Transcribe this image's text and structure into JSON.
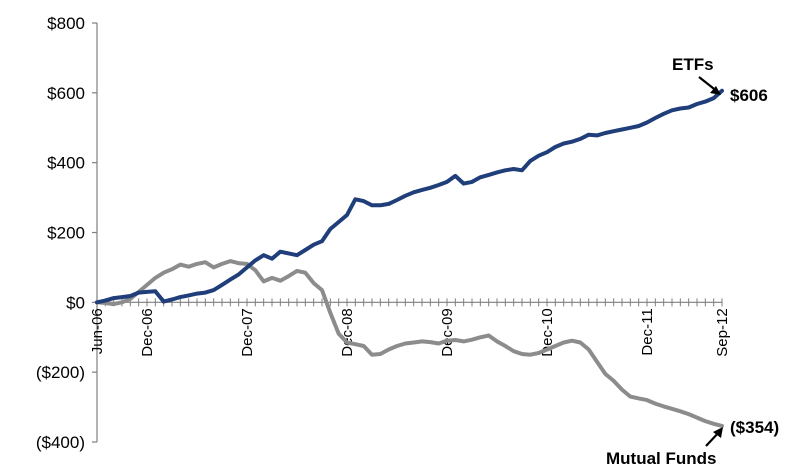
{
  "chart_data": {
    "type": "line",
    "title": "",
    "xlabel": "",
    "ylabel": "",
    "x_range": [
      "Jun-06",
      "Sep-12"
    ],
    "ylim": [
      -400,
      800
    ],
    "y_ticks": [
      800,
      600,
      400,
      200,
      0,
      -200,
      -400
    ],
    "y_tick_labels": [
      "$800",
      "$600",
      "$400",
      "$200",
      "$0",
      "($200)",
      "($400)"
    ],
    "x_tick_labels": [
      "Jun-06",
      "Dec-06",
      "Dec-07",
      "Dec-08",
      "Dec-09",
      "Dec-10",
      "Dec-11",
      "Sep-12"
    ],
    "x_tick_months": [
      0,
      6,
      18,
      30,
      42,
      54,
      66,
      75
    ],
    "grid": false,
    "colors": {
      "etfs": "#1f3e7a",
      "mutual_funds": "#8c8c8c",
      "axis": "#7f7f7f"
    },
    "series": [
      {
        "name": "ETFs",
        "values": [
          [
            0,
            0
          ],
          [
            1,
            5
          ],
          [
            2,
            12
          ],
          [
            3,
            15
          ],
          [
            4,
            18
          ],
          [
            5,
            28
          ],
          [
            6,
            30
          ],
          [
            7,
            32
          ],
          [
            8,
            2
          ],
          [
            9,
            8
          ],
          [
            10,
            15
          ],
          [
            11,
            20
          ],
          [
            12,
            25
          ],
          [
            13,
            28
          ],
          [
            14,
            35
          ],
          [
            15,
            50
          ],
          [
            16,
            65
          ],
          [
            17,
            80
          ],
          [
            18,
            100
          ],
          [
            19,
            120
          ],
          [
            20,
            135
          ],
          [
            21,
            125
          ],
          [
            22,
            145
          ],
          [
            23,
            140
          ],
          [
            24,
            135
          ],
          [
            25,
            150
          ],
          [
            26,
            165
          ],
          [
            27,
            175
          ],
          [
            28,
            210
          ],
          [
            29,
            230
          ],
          [
            30,
            250
          ],
          [
            31,
            295
          ],
          [
            32,
            290
          ],
          [
            33,
            278
          ],
          [
            34,
            278
          ],
          [
            35,
            282
          ],
          [
            36,
            293
          ],
          [
            37,
            305
          ],
          [
            38,
            315
          ],
          [
            39,
            322
          ],
          [
            40,
            328
          ],
          [
            41,
            336
          ],
          [
            42,
            345
          ],
          [
            43,
            362
          ],
          [
            44,
            340
          ],
          [
            45,
            345
          ],
          [
            46,
            358
          ],
          [
            47,
            365
          ],
          [
            48,
            372
          ],
          [
            49,
            378
          ],
          [
            50,
            382
          ],
          [
            51,
            378
          ],
          [
            52,
            405
          ],
          [
            53,
            420
          ],
          [
            54,
            430
          ],
          [
            55,
            445
          ],
          [
            56,
            455
          ],
          [
            57,
            460
          ],
          [
            58,
            468
          ],
          [
            59,
            480
          ],
          [
            60,
            478
          ],
          [
            61,
            485
          ],
          [
            62,
            490
          ],
          [
            63,
            495
          ],
          [
            64,
            500
          ],
          [
            65,
            505
          ],
          [
            66,
            515
          ],
          [
            67,
            528
          ],
          [
            68,
            540
          ],
          [
            69,
            550
          ],
          [
            70,
            555
          ],
          [
            71,
            558
          ],
          [
            72,
            568
          ],
          [
            73,
            575
          ],
          [
            74,
            585
          ],
          [
            75,
            606
          ]
        ]
      },
      {
        "name": "Mutual Funds",
        "values": [
          [
            0,
            0
          ],
          [
            1,
            -2
          ],
          [
            2,
            -5
          ],
          [
            3,
            0
          ],
          [
            4,
            10
          ],
          [
            5,
            30
          ],
          [
            6,
            50
          ],
          [
            7,
            70
          ],
          [
            8,
            85
          ],
          [
            9,
            95
          ],
          [
            10,
            108
          ],
          [
            11,
            102
          ],
          [
            12,
            110
          ],
          [
            13,
            115
          ],
          [
            14,
            100
          ],
          [
            15,
            110
          ],
          [
            16,
            118
          ],
          [
            17,
            112
          ],
          [
            18,
            110
          ],
          [
            19,
            92
          ],
          [
            20,
            60
          ],
          [
            21,
            70
          ],
          [
            22,
            62
          ],
          [
            23,
            75
          ],
          [
            24,
            90
          ],
          [
            25,
            85
          ],
          [
            26,
            55
          ],
          [
            27,
            35
          ],
          [
            28,
            -30
          ],
          [
            29,
            -90
          ],
          [
            30,
            -115
          ],
          [
            31,
            -120
          ],
          [
            32,
            -125
          ],
          [
            33,
            -150
          ],
          [
            34,
            -148
          ],
          [
            35,
            -135
          ],
          [
            36,
            -125
          ],
          [
            37,
            -118
          ],
          [
            38,
            -115
          ],
          [
            39,
            -112
          ],
          [
            40,
            -114
          ],
          [
            41,
            -118
          ],
          [
            42,
            -110
          ],
          [
            43,
            -108
          ],
          [
            44,
            -112
          ],
          [
            45,
            -107
          ],
          [
            46,
            -100
          ],
          [
            47,
            -95
          ],
          [
            48,
            -112
          ],
          [
            49,
            -125
          ],
          [
            50,
            -140
          ],
          [
            51,
            -148
          ],
          [
            52,
            -150
          ],
          [
            53,
            -145
          ],
          [
            54,
            -135
          ],
          [
            55,
            -125
          ],
          [
            56,
            -115
          ],
          [
            57,
            -110
          ],
          [
            58,
            -115
          ],
          [
            59,
            -135
          ],
          [
            60,
            -170
          ],
          [
            61,
            -205
          ],
          [
            62,
            -225
          ],
          [
            63,
            -250
          ],
          [
            64,
            -270
          ],
          [
            65,
            -275
          ],
          [
            66,
            -280
          ],
          [
            67,
            -290
          ],
          [
            68,
            -298
          ],
          [
            69,
            -305
          ],
          [
            70,
            -312
          ],
          [
            71,
            -320
          ],
          [
            72,
            -330
          ],
          [
            73,
            -340
          ],
          [
            74,
            -348
          ],
          [
            75,
            -354
          ]
        ]
      }
    ],
    "annotations": [
      {
        "label": "ETFs",
        "value_label": "$606"
      },
      {
        "label": "Mutual Funds",
        "value_label": "($354)"
      }
    ]
  }
}
